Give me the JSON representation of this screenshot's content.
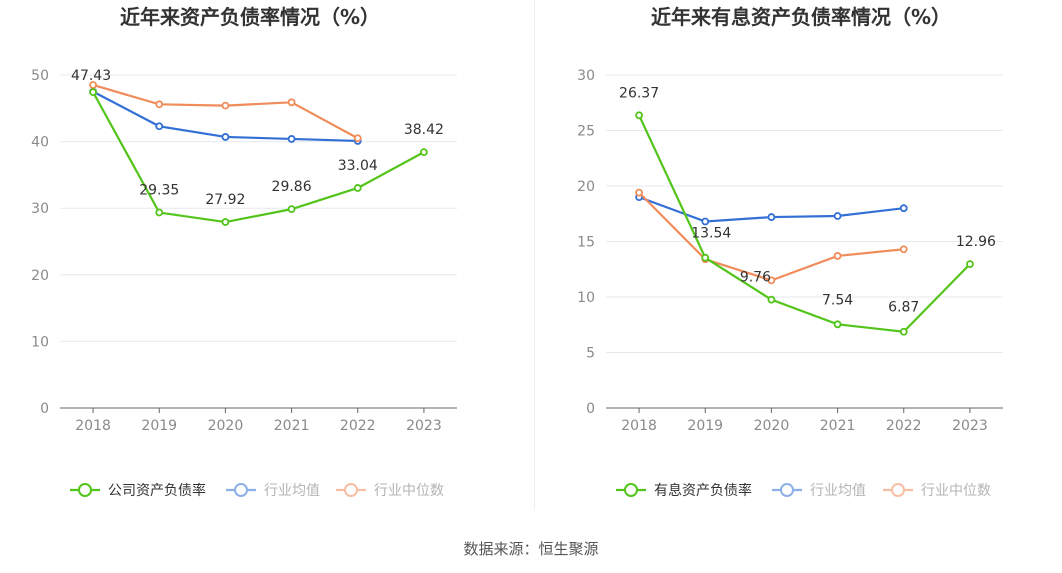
{
  "colors": {
    "company": "#52c41a",
    "average": "#3370d6",
    "median": "#f08c5a",
    "grid": "#e6e9f0",
    "axis": "#666666"
  },
  "source": "数据来源：恒生聚源",
  "chart_data": [
    {
      "type": "line",
      "title": "近年来资产负债率情况（%）",
      "categories": [
        "2018",
        "2019",
        "2020",
        "2021",
        "2022",
        "2023"
      ],
      "ylim": [
        0,
        50
      ],
      "yticks": [
        "0",
        "10",
        "20",
        "30",
        "40",
        "50"
      ],
      "grid": true,
      "legend_position": "bottom",
      "series": [
        {
          "name": "公司资产负债率",
          "color_key": "company",
          "values": [
            47.43,
            29.35,
            27.92,
            29.86,
            33.04,
            38.42
          ],
          "labels": [
            "47.43",
            "29.35",
            "27.92",
            "29.86",
            "33.04",
            "38.42"
          ]
        },
        {
          "name": "行业均值",
          "color_key": "average",
          "values": [
            47.5,
            42.3,
            40.7,
            40.4,
            40.1,
            null
          ]
        },
        {
          "name": "行业中位数",
          "color_key": "median",
          "values": [
            48.5,
            45.6,
            45.4,
            45.9,
            40.5,
            null
          ]
        }
      ]
    },
    {
      "type": "line",
      "title": "近年来有息资产负债率情况（%）",
      "categories": [
        "2018",
        "2019",
        "2020",
        "2021",
        "2022",
        "2023"
      ],
      "ylim": [
        0,
        30
      ],
      "yticks": [
        "0",
        "5",
        "10",
        "15",
        "20",
        "25",
        "30"
      ],
      "grid": true,
      "legend_position": "bottom",
      "series": [
        {
          "name": "有息资产负债率",
          "color_key": "company",
          "values": [
            26.37,
            13.54,
            9.76,
            7.54,
            6.87,
            12.96
          ],
          "labels": [
            "26.37",
            "13.54",
            "9.76",
            "7.54",
            "6.87",
            "12.96"
          ]
        },
        {
          "name": "行业均值",
          "color_key": "average",
          "values": [
            19.0,
            16.8,
            17.2,
            17.3,
            18.0,
            null
          ]
        },
        {
          "name": "行业中位数",
          "color_key": "median",
          "values": [
            19.4,
            13.4,
            11.5,
            13.7,
            14.3,
            null
          ]
        }
      ]
    }
  ]
}
